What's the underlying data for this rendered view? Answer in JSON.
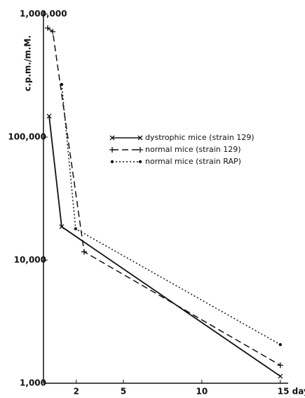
{
  "chart_data": {
    "type": "line",
    "y_label": "c.p.m./m.M.",
    "ylog": true,
    "xlim": [
      0,
      15.5
    ],
    "ylim": [
      1000,
      1000000
    ],
    "xticks": [
      2,
      5,
      10,
      {
        "value": 15,
        "label": "15 days"
      }
    ],
    "yticks": [
      {
        "value": 1000,
        "label": "1,000"
      },
      {
        "value": 10000,
        "label": "10,000"
      },
      {
        "value": 100000,
        "label": "100,000"
      },
      {
        "value": 1000000,
        "label": "1,000,000"
      }
    ],
    "series": [
      {
        "name": "dystrophic mice (strain 129)",
        "color": "#111",
        "style": "solid",
        "marker": "x",
        "x": [
          0.27,
          1.07,
          15
        ],
        "values": [
          148000,
          18700,
          1140
        ]
      },
      {
        "name": "normal mice (strain 129)",
        "color": "#111",
        "style": "dashed",
        "marker": "+",
        "x": [
          0.18,
          0.5,
          2.5,
          15
        ],
        "values": [
          770000,
          720000,
          11700,
          1400
        ]
      },
      {
        "name": "normal mice (strain RAP)",
        "color": "#111",
        "style": "dotted",
        "marker": "dot",
        "x": [
          1.07,
          1.96,
          15
        ],
        "values": [
          268000,
          18000,
          2060
        ]
      }
    ]
  }
}
